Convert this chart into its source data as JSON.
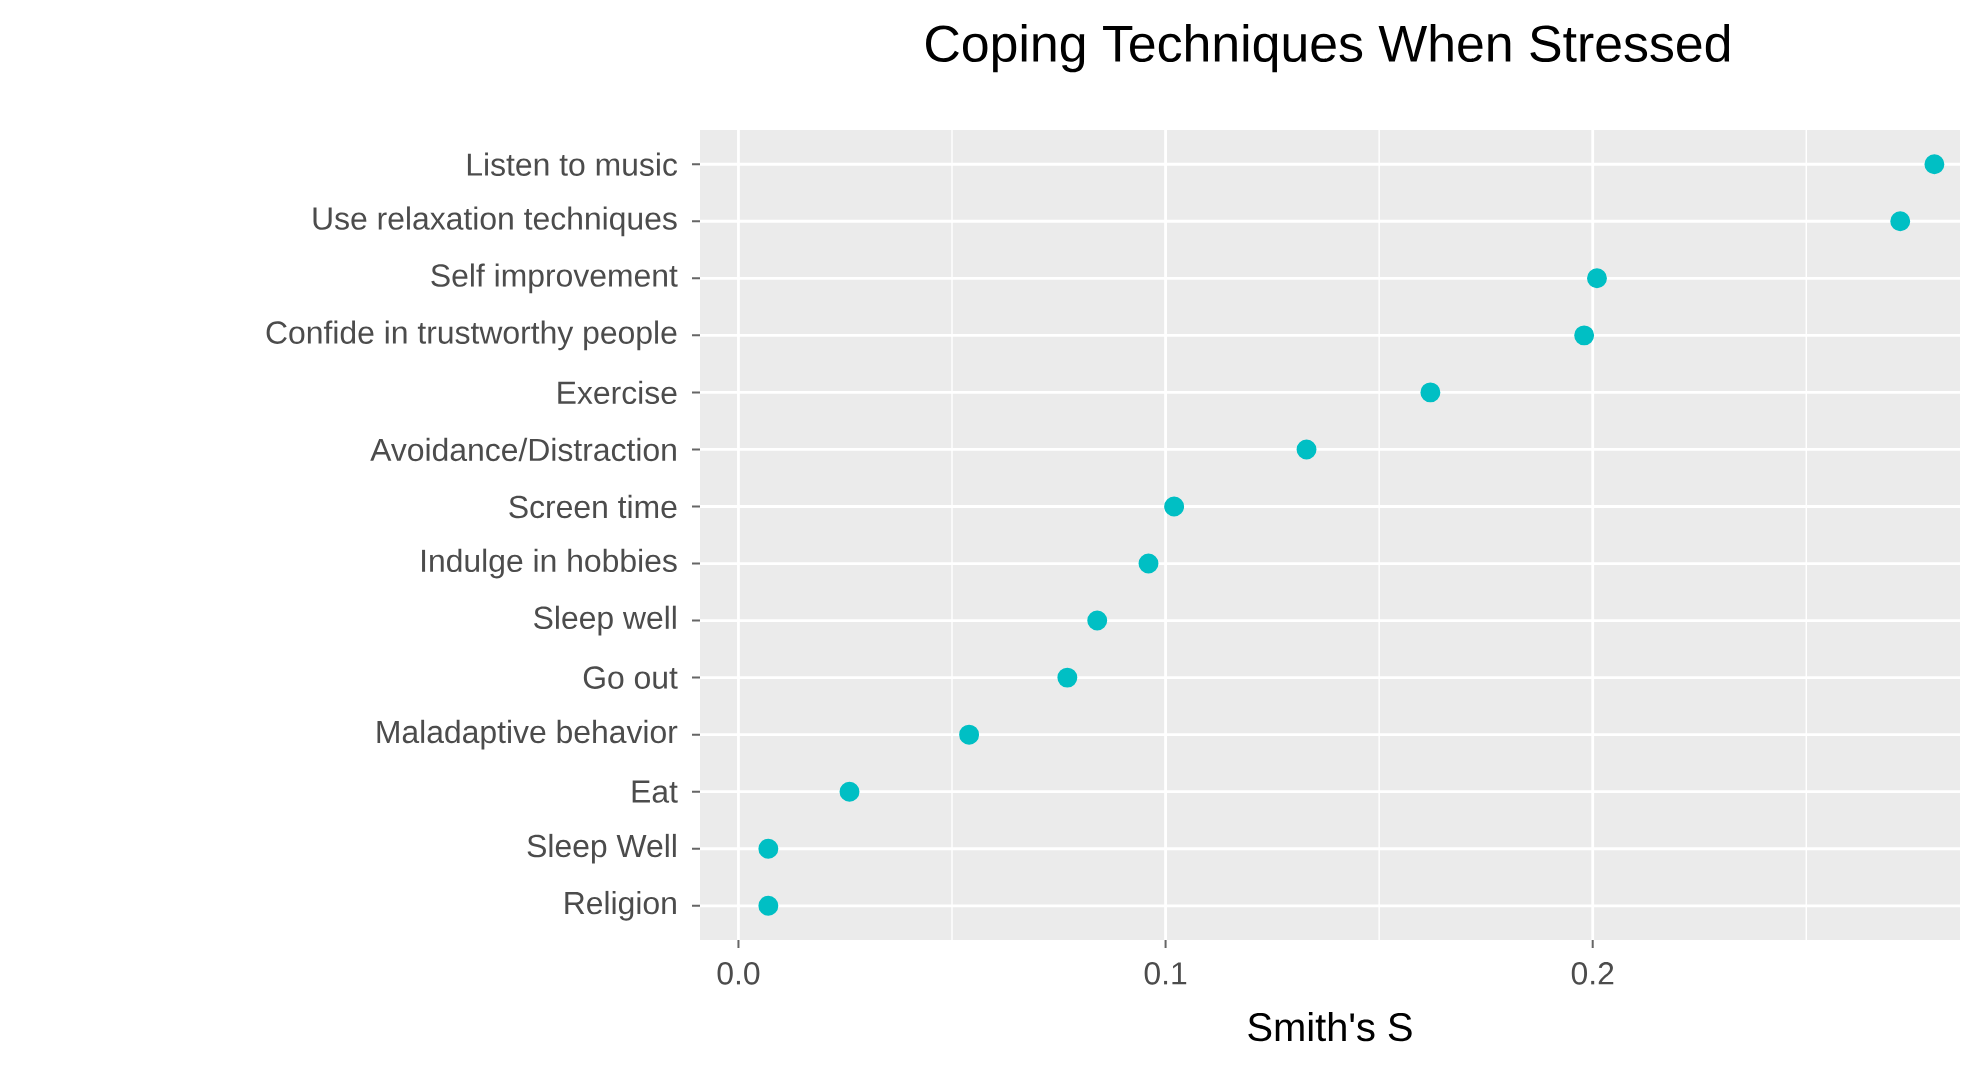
{
  "chart_data": {
    "type": "scatter",
    "title": "Coping Techniques When Stressed",
    "xlabel": "Smith's S",
    "categories": [
      "Listen to music",
      "Use relaxation techniques",
      "Self improvement",
      "Confide in trustworthy people",
      "Exercise",
      "Avoidance/Distraction",
      "Screen time",
      "Indulge in hobbies",
      "Sleep well",
      "Go out",
      "Maladaptive behavior",
      "Eat",
      "Sleep Well",
      "Religion"
    ],
    "orientation": "horizontal",
    "values": [
      0.28,
      0.272,
      0.201,
      0.198,
      0.162,
      0.133,
      0.102,
      0.096,
      0.084,
      0.077,
      0.054,
      0.026,
      0.007,
      0.007
    ],
    "color": "#00bfc4",
    "grid": true,
    "xlim": [
      -0.009,
      0.286
    ],
    "xticks": [
      {
        "value": 0,
        "label": "0.0"
      },
      {
        "value": 0.05,
        "label": null
      },
      {
        "value": 0.1,
        "label": "0.1"
      },
      {
        "value": 0.15,
        "label": null
      },
      {
        "value": 0.2,
        "label": "0.2"
      },
      {
        "value": 0.25,
        "label": null
      }
    ]
  }
}
